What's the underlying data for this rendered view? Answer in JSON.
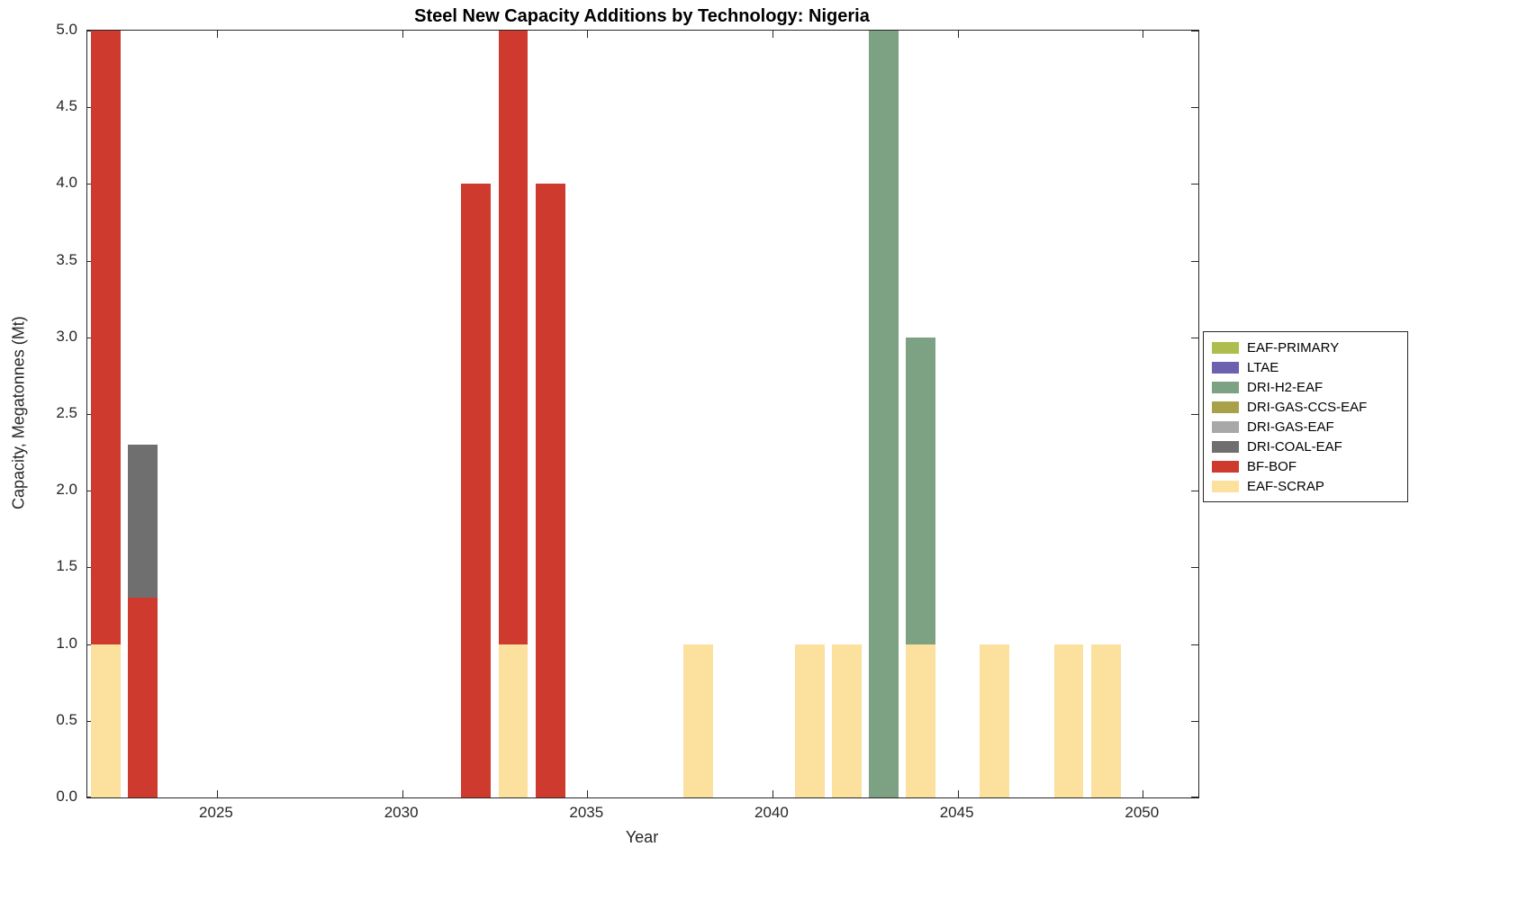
{
  "chart_data": {
    "type": "bar",
    "stacked": true,
    "title": "Steel New Capacity Additions by Technology: Nigeria",
    "xlabel": "Year",
    "ylabel": "Capacity, Megatonnes (Mt)",
    "xlim": [
      2021.5,
      2051.5
    ],
    "ylim": [
      0,
      5
    ],
    "ytick_step": 0.5,
    "xticks": [
      2025,
      2030,
      2035,
      2040,
      2045,
      2050
    ],
    "bar_width_years": 0.8,
    "grid": false,
    "legend_position": "outside-right",
    "background_color": "#FFFFFF",
    "frame_color": "#262626",
    "categories": [
      2022,
      2023,
      2032,
      2033,
      2034,
      2038,
      2041,
      2042,
      2043,
      2044,
      2046,
      2048,
      2049
    ],
    "stack_order_bottom_to_top": [
      "EAF-SCRAP",
      "BF-BOF",
      "DRI-COAL-EAF",
      "DRI-GAS-EAF",
      "DRI-GAS-CCS-EAF",
      "DRI-H2-EAF",
      "LTAE",
      "EAF-PRIMARY"
    ],
    "series": [
      {
        "name": "EAF-PRIMARY",
        "color": "#ADBE4E",
        "values": [
          0,
          0,
          0,
          0,
          0,
          0,
          0,
          0,
          0,
          0,
          0,
          0,
          0
        ]
      },
      {
        "name": "LTAE",
        "color": "#6C61AE",
        "values": [
          0,
          0,
          0,
          0,
          0,
          0,
          0,
          0,
          0,
          0,
          0,
          0,
          0
        ]
      },
      {
        "name": "DRI-H2-EAF",
        "color": "#7CA183",
        "values": [
          0,
          0,
          0,
          0,
          0,
          0,
          0,
          0,
          5,
          2,
          0,
          0,
          0
        ]
      },
      {
        "name": "DRI-GAS-CCS-EAF",
        "color": "#A9A149",
        "values": [
          0,
          0,
          0,
          0,
          0,
          0,
          0,
          0,
          0,
          0,
          0,
          0,
          0
        ]
      },
      {
        "name": "DRI-GAS-EAF",
        "color": "#A8A8A8",
        "values": [
          0,
          0,
          0,
          0,
          0,
          0,
          0,
          0,
          0,
          0,
          0,
          0,
          0
        ]
      },
      {
        "name": "DRI-COAL-EAF",
        "color": "#6F6F6F",
        "values": [
          0,
          1,
          0,
          0,
          0,
          0,
          0,
          0,
          0,
          0,
          0,
          0,
          0
        ]
      },
      {
        "name": "BF-BOF",
        "color": "#CF3A2F",
        "values": [
          4,
          1.3,
          4,
          4,
          4,
          0,
          0,
          0,
          0,
          0,
          0,
          0,
          0
        ]
      },
      {
        "name": "EAF-SCRAP",
        "color": "#FBE09E",
        "values": [
          1,
          0,
          0,
          1,
          0,
          1,
          1,
          1,
          0,
          1,
          1,
          1,
          1
        ]
      }
    ]
  }
}
